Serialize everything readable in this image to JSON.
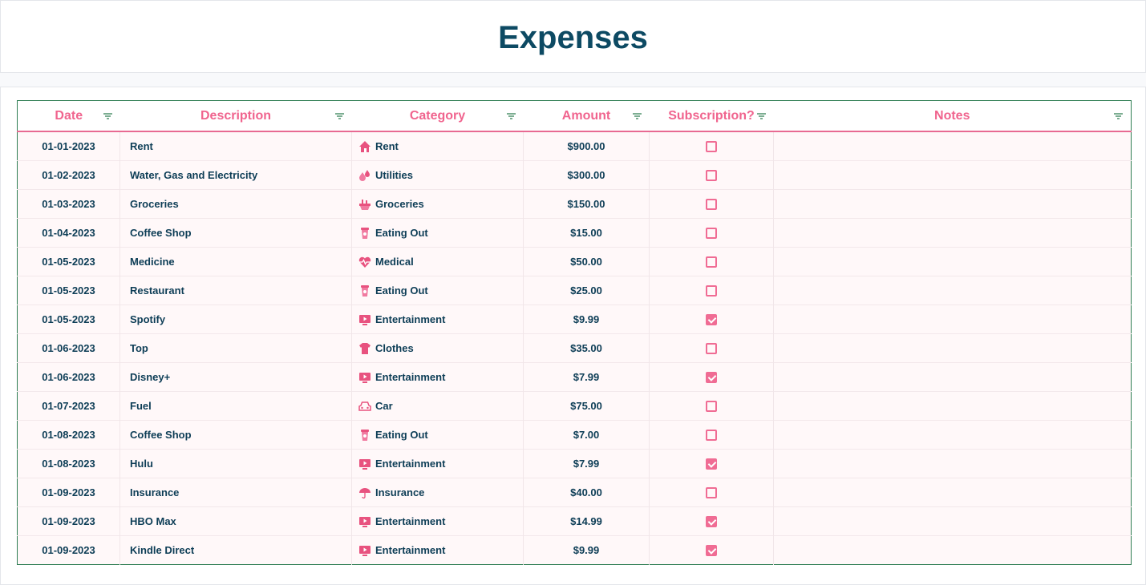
{
  "header": {
    "title": "Expenses"
  },
  "table": {
    "columns": [
      "Date",
      "Description",
      "Category",
      "Amount",
      "Subscription?",
      "Notes"
    ],
    "rows": [
      {
        "date": "01-01-2023",
        "description": "Rent",
        "category": "Rent",
        "amount": "$900.00",
        "subscription": false
      },
      {
        "date": "01-02-2023",
        "description": "Water, Gas and Electricity",
        "category": "Utilities",
        "amount": "$300.00",
        "subscription": false
      },
      {
        "date": "01-03-2023",
        "description": "Groceries",
        "category": "Groceries",
        "amount": "$150.00",
        "subscription": false
      },
      {
        "date": "01-04-2023",
        "description": "Coffee Shop",
        "category": "Eating Out",
        "amount": "$15.00",
        "subscription": false
      },
      {
        "date": "01-05-2023",
        "description": "Medicine",
        "category": "Medical",
        "amount": "$50.00",
        "subscription": false
      },
      {
        "date": "01-05-2023",
        "description": "Restaurant",
        "category": "Eating Out",
        "amount": "$25.00",
        "subscription": false
      },
      {
        "date": "01-05-2023",
        "description": "Spotify",
        "category": "Entertainment",
        "amount": "$9.99",
        "subscription": true
      },
      {
        "date": "01-06-2023",
        "description": "Top",
        "category": "Clothes",
        "amount": "$35.00",
        "subscription": false
      },
      {
        "date": "01-06-2023",
        "description": "Disney+",
        "category": "Entertainment",
        "amount": "$7.99",
        "subscription": true
      },
      {
        "date": "01-07-2023",
        "description": "Fuel",
        "category": "Car",
        "amount": "$75.00",
        "subscription": false
      },
      {
        "date": "01-08-2023",
        "description": "Coffee Shop",
        "category": "Eating Out",
        "amount": "$7.00",
        "subscription": false
      },
      {
        "date": "01-08-2023",
        "description": "Hulu",
        "category": "Entertainment",
        "amount": "$7.99",
        "subscription": true
      },
      {
        "date": "01-09-2023",
        "description": "Insurance",
        "category": "Insurance",
        "amount": "$40.00",
        "subscription": false
      },
      {
        "date": "01-09-2023",
        "description": "HBO Max",
        "category": "Entertainment",
        "amount": "$14.99",
        "subscription": true
      },
      {
        "date": "01-09-2023",
        "description": "Kindle Direct",
        "category": "Entertainment",
        "amount": "$9.99",
        "subscription": true
      }
    ]
  }
}
